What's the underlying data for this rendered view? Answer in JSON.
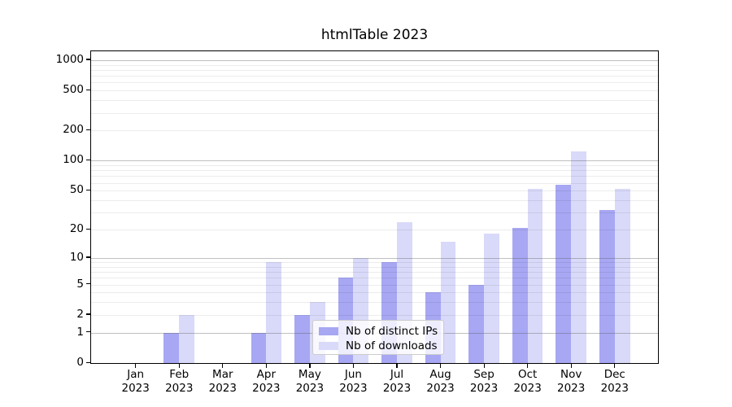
{
  "chart_data": {
    "type": "bar",
    "title": "htmlTable 2023",
    "year_label": "2023",
    "categories": [
      "Jan",
      "Feb",
      "Mar",
      "Apr",
      "May",
      "Jun",
      "Jul",
      "Aug",
      "Sep",
      "Oct",
      "Nov",
      "Dec"
    ],
    "series": [
      {
        "name": "Nb of distinct IPs",
        "color": "#a7a7f3",
        "values": [
          0,
          1,
          0,
          1,
          2,
          6,
          9,
          4,
          5,
          21,
          57,
          32
        ]
      },
      {
        "name": "Nb of downloads",
        "color": "#d9d9f9",
        "values": [
          0,
          2,
          0,
          9,
          3,
          10,
          24,
          15,
          18,
          52,
          125,
          52
        ]
      }
    ],
    "xlabel": "",
    "ylabel": "",
    "y_axis": {
      "scale": "log10(1+x)",
      "tick_labels": [
        0,
        1,
        2,
        5,
        10,
        20,
        50,
        100,
        200,
        500,
        1000
      ],
      "major_grid": [
        1,
        10,
        100,
        1000
      ],
      "minor_grid": [
        2,
        3,
        4,
        5,
        6,
        7,
        8,
        9,
        20,
        30,
        40,
        50,
        60,
        70,
        80,
        90,
        200,
        300,
        400,
        500,
        600,
        700,
        800,
        900
      ],
      "range_top": 1200
    },
    "grid": true,
    "legend_position": "lower-center"
  },
  "colors": {
    "background": "#ffffff",
    "axis": "#000000",
    "grid_major": "#c6c6c6",
    "grid_minor": "#ededed",
    "series_dark": "#a7a7f3",
    "series_light": "#d9d9f9"
  }
}
